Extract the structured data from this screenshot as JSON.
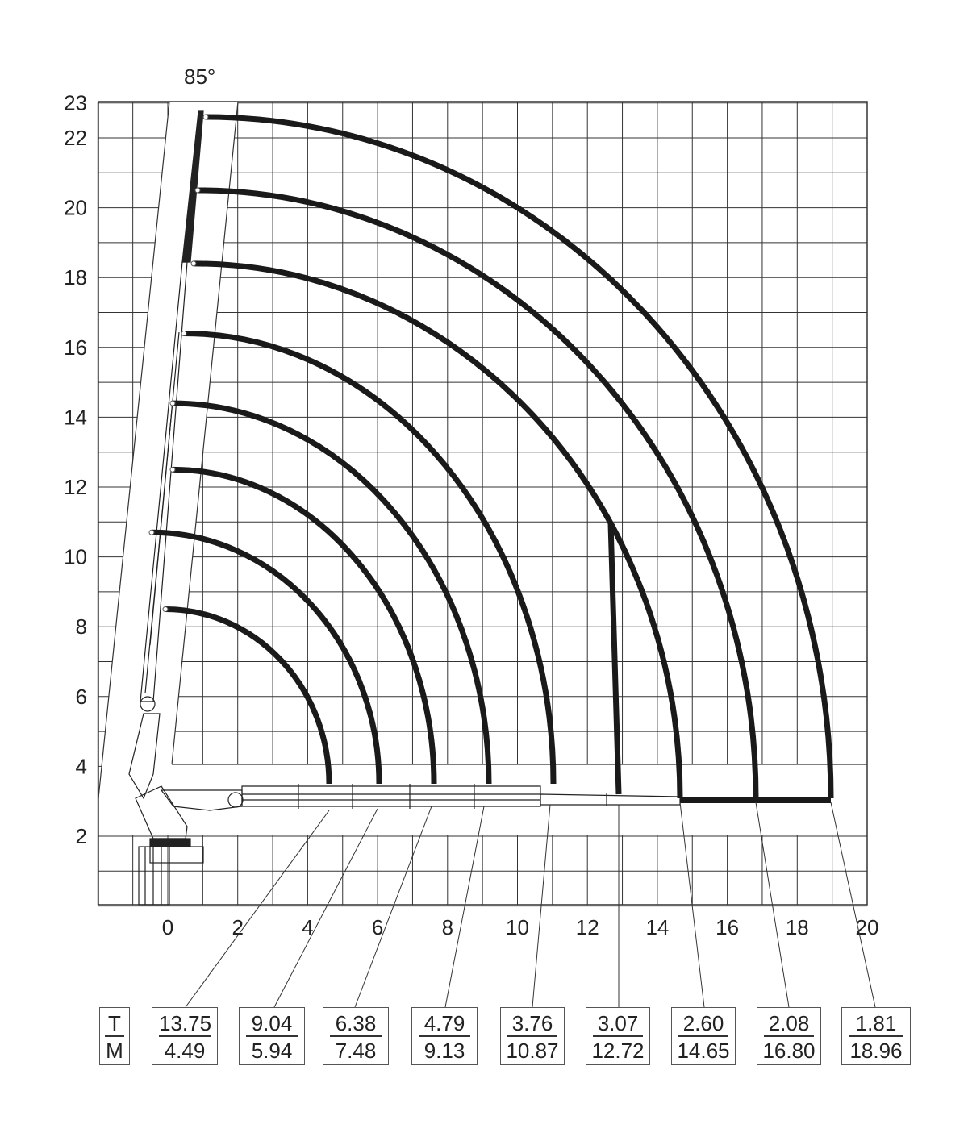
{
  "diagram": {
    "angle_label": "85°",
    "x_ticks": [
      "0",
      "2",
      "4",
      "6",
      "8",
      "10",
      "12",
      "14",
      "16",
      "18",
      "20"
    ],
    "y_ticks": [
      "2",
      "4",
      "6",
      "8",
      "10",
      "12",
      "14",
      "16",
      "18",
      "20",
      "22",
      "23"
    ],
    "legend": {
      "top": "T",
      "bottom": "M"
    },
    "line_color": "#1a1a1a",
    "grid_color": "#333333"
  },
  "chart_data": {
    "type": "load-chart",
    "x_range_m": [
      -2,
      20
    ],
    "y_range_m": [
      0,
      23
    ],
    "grid": true,
    "grid_step_m": 1,
    "load_points": [
      {
        "load_t": "13.75",
        "reach_m": "4.49"
      },
      {
        "load_t": "9.04",
        "reach_m": "5.94"
      },
      {
        "load_t": "6.38",
        "reach_m": "7.48"
      },
      {
        "load_t": "4.79",
        "reach_m": "9.13"
      },
      {
        "load_t": "3.76",
        "reach_m": "10.87"
      },
      {
        "load_t": "3.07",
        "reach_m": "12.72"
      },
      {
        "load_t": "2.60",
        "reach_m": "14.65"
      },
      {
        "load_t": "2.08",
        "reach_m": "16.80"
      },
      {
        "load_t": "1.81",
        "reach_m": "18.96"
      }
    ],
    "arc_max_heights_m": [
      8.5,
      10.7,
      12.5,
      14.4,
      16.4,
      18.4,
      20.5,
      22.6
    ]
  }
}
